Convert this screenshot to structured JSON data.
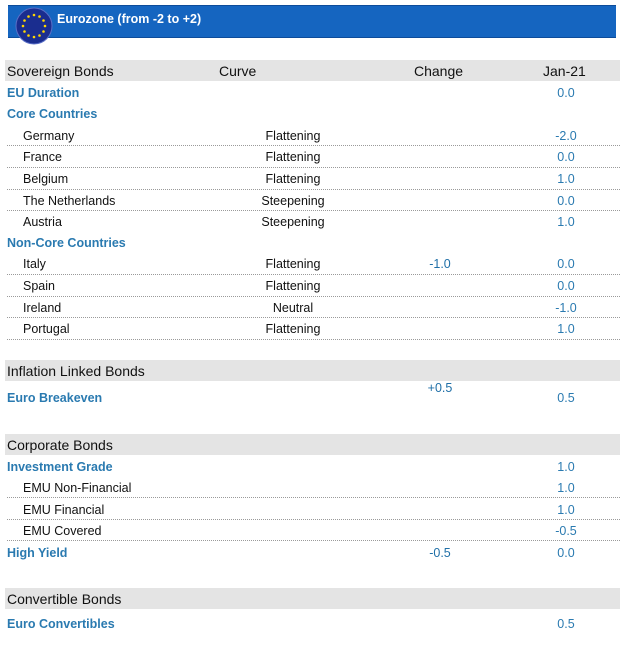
{
  "header": {
    "title": "Eurozone (from -2 to +2)",
    "accent_color": "#1565c0",
    "flag_icon": "eu-flag-icon"
  },
  "columns": {
    "sovereign": "Sovereign Bonds",
    "curve": "Curve",
    "change": "Change",
    "period": "Jan-21"
  },
  "sovereign": {
    "eu_duration": {
      "label": "EU Duration",
      "value": "0.0"
    },
    "core_label": "Core Countries",
    "core": [
      {
        "name": "Germany",
        "curve": "Flattening",
        "value": "-2.0"
      },
      {
        "name": "France",
        "curve": "Flattening",
        "value": "0.0"
      },
      {
        "name": "Belgium",
        "curve": "Flattening",
        "value": "1.0"
      },
      {
        "name": "The Netherlands",
        "curve": "Steepening",
        "value": "0.0"
      },
      {
        "name": "Austria",
        "curve": "Steepening",
        "value": "1.0"
      }
    ],
    "noncore_label": "Non-Core  Countries",
    "noncore": [
      {
        "name": "Italy",
        "curve": "Flattening",
        "change": "-1.0",
        "value": "0.0"
      },
      {
        "name": "Spain",
        "curve": "Flattening",
        "value": "0.0"
      },
      {
        "name": "Ireland",
        "curve": "Neutral",
        "value": "-1.0"
      },
      {
        "name": "Portugal",
        "curve": "Flattening",
        "value": "1.0"
      }
    ]
  },
  "inflation": {
    "title": "Inflation Linked Bonds",
    "label": "Euro Breakeven",
    "change": "+0.5",
    "value": "0.5"
  },
  "corporate": {
    "title": "Corporate Bonds",
    "ig_label": "Investment Grade",
    "ig_value": "1.0",
    "items": [
      {
        "name": "EMU Non-Financial",
        "value": "1.0"
      },
      {
        "name": "EMU Financial",
        "value": "1.0"
      },
      {
        "name": "EMU Covered",
        "value": "-0.5"
      }
    ],
    "hy_label": "High Yield",
    "hy_change": "-0.5",
    "hy_value": "0.0"
  },
  "convertible": {
    "title": "Convertible Bonds",
    "label": "Euro Convertibles",
    "value": "0.5"
  }
}
